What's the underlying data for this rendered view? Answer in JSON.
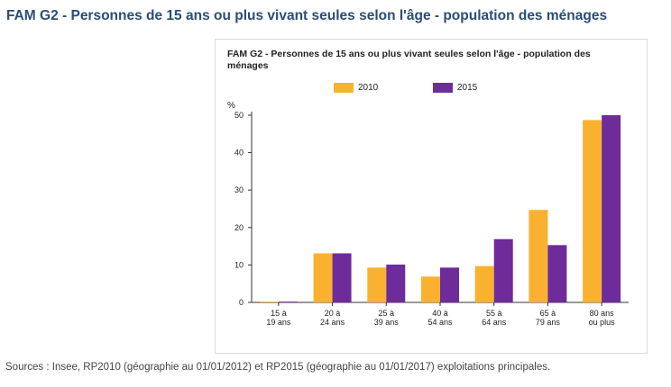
{
  "page": {
    "title": "FAM G2 - Personnes de 15 ans ou plus vivant seules selon l'âge - population des ménages",
    "sources": "Sources : Insee, RP2010 (géographie au 01/01/2012) et RP2015 (géographie au 01/01/2017) exploitations principales."
  },
  "chart_data": {
    "type": "bar",
    "title": "FAM G2 - Personnes de 15 ans ou plus vivant seules selon l'âge - population des ménages",
    "ylabel": "%",
    "xlabel": "",
    "ylim": [
      0,
      50
    ],
    "yticks": [
      "0",
      "10",
      "20",
      "30",
      "40",
      "50"
    ],
    "categories": [
      [
        "15 à",
        "19 ans"
      ],
      [
        "20 à",
        "24 ans"
      ],
      [
        "25 à",
        "39 ans"
      ],
      [
        "40 à",
        "54 ans"
      ],
      [
        "55 à",
        "64 ans"
      ],
      [
        "65 à",
        "79 ans"
      ],
      [
        "80 ans",
        "ou plus"
      ]
    ],
    "series": [
      {
        "name": "2010",
        "color": "#fbb130",
        "values": [
          0.2,
          13.1,
          9.3,
          6.9,
          9.7,
          24.7,
          48.7
        ]
      },
      {
        "name": "2015",
        "color": "#6e2b9a",
        "values": [
          0.2,
          13.1,
          10.1,
          9.3,
          16.9,
          15.3,
          50.0
        ]
      }
    ],
    "grid": false,
    "legend_position": "top"
  }
}
